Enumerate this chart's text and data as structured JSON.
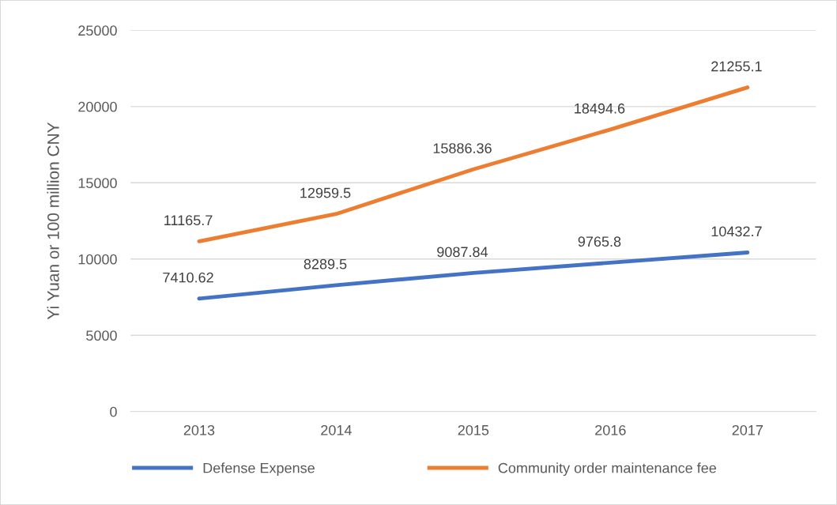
{
  "chart_data": {
    "type": "line",
    "ylabel": "Yi Yuan or 100 million CNY",
    "categories": [
      "2013",
      "2014",
      "2015",
      "2016",
      "2017"
    ],
    "series": [
      {
        "name": "Defense Expense",
        "color": "#4472c4",
        "values": [
          7410.62,
          8289.5,
          9087.84,
          9765.8,
          10432.7
        ]
      },
      {
        "name": "Community order maintenance fee",
        "color": "#ed7d31",
        "values": [
          11165.7,
          12959.5,
          15886.36,
          18494.6,
          21255.1
        ]
      }
    ],
    "ylim": [
      0,
      25000
    ],
    "yticks": [
      0,
      5000,
      10000,
      15000,
      20000,
      25000
    ],
    "grid": "y",
    "legend": "bottom",
    "data_labels": true,
    "marker": "none",
    "line_style": "solid"
  }
}
